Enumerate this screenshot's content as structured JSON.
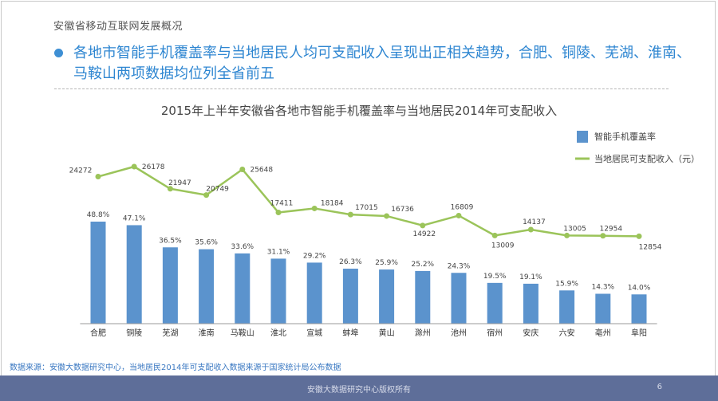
{
  "header": {
    "section_title": "安徽省移动互联网发展概况",
    "headline": "各地市智能手机覆盖率与当地居民人均可支配收入呈现出正相关趋势，合肥、铜陵、芜湖、淮南、马鞍山两项数据均位列全省前五"
  },
  "chart_data": {
    "type": "bar",
    "title": "2015年上半年安徽省各地市智能手机覆盖率与当地居民2014年可支配收入",
    "categories": [
      "合肥",
      "铜陵",
      "芜湖",
      "淮南",
      "马鞍山",
      "淮北",
      "宣城",
      "蚌埠",
      "黄山",
      "滁州",
      "池州",
      "宿州",
      "安庆",
      "六安",
      "亳州",
      "阜阳"
    ],
    "series": [
      {
        "name": "智能手机覆盖率",
        "kind": "bar",
        "values": [
          48.8,
          47.1,
          36.5,
          35.6,
          33.6,
          31.1,
          29.2,
          26.3,
          25.9,
          25.2,
          24.3,
          19.5,
          19.1,
          15.9,
          14.3,
          14.0
        ],
        "labels": [
          "48.8%",
          "47.1%",
          "36.5%",
          "35.6%",
          "33.6%",
          "31.1%",
          "29.2%",
          "26.3%",
          "25.9%",
          "25.2%",
          "24.3%",
          "19.5%",
          "19.1%",
          "15.9%",
          "14.3%",
          "14.0%"
        ],
        "color": "#5b93cd"
      },
      {
        "name": "当地居民可支配收入（元）",
        "kind": "line",
        "values": [
          24272,
          26178,
          21947,
          20749,
          25648,
          17411,
          18184,
          17015,
          16736,
          14922,
          16809,
          13009,
          14137,
          13005,
          12954,
          12854
        ],
        "color": "#9bc45a"
      }
    ],
    "legend": [
      "智能手机覆盖率",
      "当地居民可支配收入（元）"
    ],
    "legend_position": "top-right",
    "bar_ylim": [
      0,
      100
    ],
    "line_ylim": [
      0,
      26178
    ],
    "xlabel": "",
    "ylabel": "",
    "grid": false
  },
  "footnote": "数据来源：安徽大数据研究中心，当地居民2014年可支配收入数据来源于国家统计局公布数据",
  "footer": {
    "text": "安徽大数据研究中心版权所有",
    "page_number": "6"
  }
}
